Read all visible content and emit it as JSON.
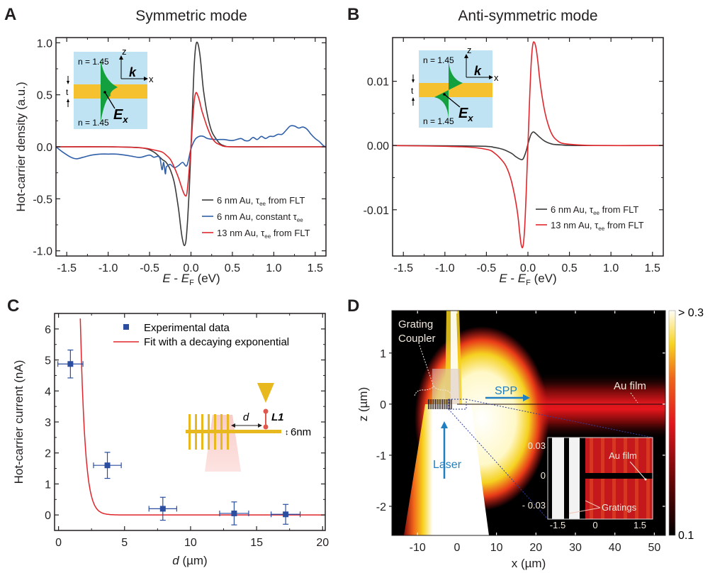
{
  "panels": {
    "A": {
      "letter": "A",
      "title": "Symmetric mode"
    },
    "B": {
      "letter": "B",
      "title": "Anti-symmetric mode"
    },
    "C": {
      "letter": "C"
    },
    "D": {
      "letter": "D"
    }
  },
  "insets": {
    "mode_diagram": {
      "n_top": "n = 1.45",
      "n_bottom": "n = 1.45",
      "axis_z": "z",
      "axis_x": "x",
      "wavevector": "k",
      "thickness": "t",
      "field": "E",
      "field_sub": "x"
    },
    "device": {
      "distance_label": "d",
      "junction_label": "L1",
      "thickness_label": "6nm"
    }
  },
  "colors": {
    "black_series": "#3a3a3a",
    "blue_series": "#2f5fa8",
    "red_series": "#e0262b",
    "marker_blue": "#2b4ea0",
    "inset_bg": "#bfe3f2",
    "gold": "#f5c12e",
    "field_green": "#14a03f",
    "laser_arrow": "#1f7fc1"
  },
  "chart_data": [
    {
      "id": "A",
      "type": "line",
      "title": "Symmetric mode",
      "xlabel": "E - E_F (eV)",
      "ylabel": "Hot-carrier density (a.u.)",
      "xlim": [
        -1.63,
        1.63
      ],
      "ylim": [
        -1.05,
        1.05
      ],
      "xticks": [
        "-1.5",
        "-1.0",
        "-0.5",
        "0.0",
        "0.5",
        "1.0",
        "1.5"
      ],
      "xtick_values": [
        -1.5,
        -1.0,
        -0.5,
        0.0,
        0.5,
        1.0,
        1.5
      ],
      "yticks": [
        "-1.0",
        "-0.5",
        "0.0",
        "0.5",
        "1.0"
      ],
      "ytick_values": [
        -1.0,
        -0.5,
        0.0,
        0.5,
        1.0
      ],
      "legend_position": "bottom-right",
      "series": [
        {
          "name": "6 nm Au, τ_ee from FLT",
          "label_main": "6 nm Au, τ",
          "label_sub": "ee",
          "label_end": " from FLT",
          "color": "#3a3a3a",
          "x": [
            -1.63,
            -1.0,
            -0.6,
            -0.45,
            -0.35,
            -0.3,
            -0.25,
            -0.2,
            -0.15,
            -0.12,
            -0.1,
            -0.08,
            -0.06,
            -0.04,
            -0.02,
            0.0,
            0.02,
            0.04,
            0.06,
            0.08,
            0.1,
            0.12,
            0.15,
            0.2,
            0.25,
            0.3,
            0.35,
            0.4,
            0.5,
            1.0,
            1.63
          ],
          "y": [
            0,
            0,
            -0.01,
            -0.05,
            -0.12,
            -0.15,
            -0.22,
            -0.35,
            -0.6,
            -0.8,
            -0.9,
            -0.95,
            -0.9,
            -0.7,
            -0.4,
            0.0,
            0.4,
            0.8,
            0.98,
            1.0,
            0.93,
            0.8,
            0.55,
            0.3,
            0.15,
            0.08,
            0.03,
            0.01,
            0,
            0,
            0
          ]
        },
        {
          "name": "6 nm Au, constant τ_ee",
          "label_main": "6 nm Au, constant τ",
          "label_sub": "ee",
          "label_end": "",
          "color": "#2f5fa8",
          "x": [
            -1.63,
            -1.55,
            -1.45,
            -1.38,
            -1.3,
            -1.2,
            -1.1,
            -1.0,
            -0.9,
            -0.8,
            -0.72,
            -0.65,
            -0.6,
            -0.5,
            -0.45,
            -0.38,
            -0.35,
            -0.33,
            -0.31,
            -0.3,
            -0.28,
            -0.25,
            -0.2,
            -0.15,
            -0.1,
            -0.05,
            0.0,
            0.05,
            0.1,
            0.15,
            0.2,
            0.3,
            0.4,
            0.5,
            0.6,
            0.65,
            0.7,
            0.75,
            0.8,
            0.85,
            0.9,
            0.95,
            1.0,
            1.05,
            1.1,
            1.15,
            1.2,
            1.25,
            1.3,
            1.35,
            1.4,
            1.45,
            1.5,
            1.55,
            1.6,
            1.63
          ],
          "y": [
            0,
            -0.05,
            -0.1,
            -0.115,
            -0.1,
            -0.08,
            -0.07,
            -0.07,
            -0.07,
            -0.08,
            -0.09,
            -0.1,
            -0.1,
            -0.08,
            -0.1,
            -0.1,
            -0.22,
            -0.15,
            -0.26,
            -0.2,
            -0.18,
            -0.17,
            -0.2,
            -0.18,
            -0.15,
            -0.18,
            -0.02,
            0.07,
            0.1,
            0.1,
            0.08,
            0.07,
            0.07,
            0.06,
            0.08,
            0.06,
            0.06,
            0.09,
            0.07,
            0.1,
            0.08,
            0.1,
            0.1,
            0.12,
            0.12,
            0.16,
            0.2,
            0.2,
            0.18,
            0.19,
            0.17,
            0.12,
            0.08,
            0.05,
            0.01,
            0
          ]
        },
        {
          "name": "13 nm Au, τ_ee from FLT",
          "label_main": "13 nm Au, τ",
          "label_sub": "ee",
          "label_end": " from FLT",
          "color": "#e0262b",
          "x": [
            -1.63,
            -1.0,
            -0.6,
            -0.45,
            -0.35,
            -0.3,
            -0.25,
            -0.2,
            -0.15,
            -0.1,
            -0.07,
            -0.05,
            -0.03,
            0.0,
            0.02,
            0.04,
            0.06,
            0.08,
            0.1,
            0.13,
            0.15,
            0.2,
            0.25,
            0.3,
            0.35,
            0.4,
            0.5,
            1.0,
            1.63
          ],
          "y": [
            0,
            0,
            -0.01,
            -0.03,
            -0.05,
            -0.08,
            -0.12,
            -0.2,
            -0.3,
            -0.42,
            -0.47,
            -0.45,
            -0.3,
            0.0,
            0.25,
            0.45,
            0.52,
            0.5,
            0.45,
            0.35,
            0.3,
            0.18,
            0.09,
            0.04,
            0.02,
            0.005,
            0,
            0,
            0
          ]
        }
      ]
    },
    {
      "id": "B",
      "type": "line",
      "title": "Anti-symmetric mode",
      "xlabel": "E - E_F (eV)",
      "ylabel": "Hot-carrier density (a.u.)",
      "xlim": [
        -1.63,
        1.63
      ],
      "ylim": [
        -0.0172,
        0.0168
      ],
      "xticks": [
        "-1.5",
        "-1.0",
        "-0.5",
        "0.0",
        "0.5",
        "1.0",
        "1.5"
      ],
      "xtick_values": [
        -1.5,
        -1.0,
        -0.5,
        0.0,
        0.5,
        1.0,
        1.5
      ],
      "yticks": [
        "-0.01",
        "0.00",
        "0.01"
      ],
      "ytick_values": [
        -0.01,
        0.0,
        0.01
      ],
      "legend_position": "bottom-right",
      "series": [
        {
          "name": "6 nm Au, τ_ee from FLT",
          "label_main": "6 nm Au, τ",
          "label_sub": "ee",
          "label_end": " from FLT",
          "color": "#3a3a3a",
          "x": [
            -1.63,
            -0.6,
            -0.4,
            -0.3,
            -0.2,
            -0.15,
            -0.1,
            -0.07,
            -0.05,
            -0.02,
            0.0,
            0.03,
            0.05,
            0.07,
            0.1,
            0.15,
            0.2,
            0.25,
            0.3,
            0.4,
            0.6,
            1.63
          ],
          "y": [
            0,
            -0.0001,
            -0.0003,
            -0.0006,
            -0.0012,
            -0.0017,
            -0.0021,
            -0.0022,
            -0.0019,
            -0.0008,
            0.0002,
            0.0015,
            0.002,
            0.0021,
            0.0018,
            0.0012,
            0.0007,
            0.0004,
            0.0002,
            0.0001,
            0,
            0
          ]
        },
        {
          "name": "13 nm Au, τ_ee from FLT",
          "label_main": "13 nm Au, τ",
          "label_sub": "ee",
          "label_end": " from FLT",
          "color": "#e0262b",
          "x": [
            -1.63,
            -0.8,
            -0.5,
            -0.4,
            -0.3,
            -0.25,
            -0.2,
            -0.15,
            -0.12,
            -0.1,
            -0.08,
            -0.06,
            -0.04,
            -0.02,
            0.0,
            0.02,
            0.04,
            0.06,
            0.08,
            0.1,
            0.12,
            0.15,
            0.2,
            0.25,
            0.3,
            0.35,
            0.4,
            0.5,
            0.8,
            1.63
          ],
          "y": [
            0,
            -0.0002,
            -0.0006,
            -0.0012,
            -0.0025,
            -0.0036,
            -0.0055,
            -0.0085,
            -0.011,
            -0.0135,
            -0.0155,
            -0.0157,
            -0.013,
            -0.007,
            0.0,
            0.007,
            0.013,
            0.0158,
            0.016,
            0.015,
            0.013,
            0.0095,
            0.0055,
            0.003,
            0.0015,
            0.0008,
            0.0004,
            0.0002,
            0,
            0
          ]
        }
      ]
    },
    {
      "id": "C",
      "type": "scatter",
      "xlabel": "d (µm)",
      "xlabel_var": "d",
      "xlabel_unit": " (µm)",
      "ylabel": "Hot-carrier current (nA)",
      "xlim": [
        -0.3,
        20.2
      ],
      "ylim": [
        -0.5,
        6.5
      ],
      "xticks": [
        "0",
        "5",
        "10",
        "15",
        "20"
      ],
      "xtick_values": [
        0,
        5,
        10,
        15,
        20
      ],
      "yticks": [
        "0",
        "1",
        "2",
        "3",
        "4",
        "5",
        "6"
      ],
      "ytick_values": [
        0,
        1,
        2,
        3,
        4,
        5,
        6
      ],
      "legend_position": "top-right",
      "series": [
        {
          "name": "Experimental data",
          "type": "scatter",
          "color": "#2b4ea0",
          "points": [
            {
              "x": 0.9,
              "y": 4.87,
              "xerr": 0.95,
              "yerr": 0.45
            },
            {
              "x": 3.7,
              "y": 1.6,
              "xerr": 1.05,
              "yerr": 0.42
            },
            {
              "x": 7.9,
              "y": 0.2,
              "xerr": 1.05,
              "yerr": 0.37
            },
            {
              "x": 13.3,
              "y": 0.05,
              "xerr": 1.1,
              "yerr": 0.37
            },
            {
              "x": 17.2,
              "y": 0.02,
              "xerr": 1.1,
              "yerr": 0.32
            }
          ]
        },
        {
          "name": "Fit with a decaying exponential",
          "type": "line",
          "color": "#e0262b",
          "model": {
            "amplitude": 620,
            "decay_length_um": 0.36,
            "x_start": 1.65,
            "x_end": 20.2
          }
        }
      ]
    },
    {
      "id": "D",
      "type": "heatmap",
      "xlabel": "x (µm)",
      "ylabel": "z (µm)",
      "xlim": [
        -16.5,
        52.8
      ],
      "ylim": [
        -2.57,
        1.83
      ],
      "xticks": [
        "-10",
        "0",
        "10",
        "20",
        "30",
        "40",
        "50"
      ],
      "xtick_values": [
        -10,
        0,
        10,
        20,
        30,
        40,
        50
      ],
      "yticks": [
        "-2",
        "-1",
        "0",
        "1"
      ],
      "ytick_values": [
        -2,
        -1,
        0,
        1
      ],
      "colorbar": {
        "min_label": "0.1",
        "max_label": "> 0.3",
        "min": 0.1,
        "max": 0.3,
        "colormap": "hot"
      },
      "annotations": {
        "grating_coupler": "Grating\nCoupler",
        "grating_line1": "Grating",
        "grating_line2": "Coupler",
        "spp": "SPP",
        "au_film": "Au film",
        "laser": "Laser"
      },
      "inset": {
        "xticks": [
          "-1.5",
          "0",
          "1.5"
        ],
        "yticks": [
          "0.03",
          "0",
          "- 0.03"
        ],
        "au_film": "Au film",
        "gratings": "Gratings"
      }
    }
  ]
}
